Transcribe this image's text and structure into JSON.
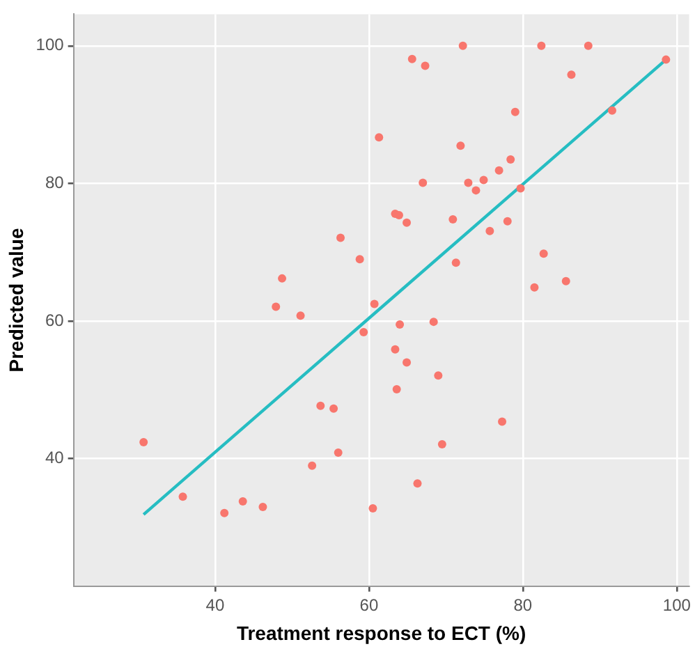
{
  "chart_data": {
    "type": "scatter",
    "xlabel": "Treatment response to ECT (%)",
    "ylabel": "Predicted value",
    "xlim": [
      21.6,
      101.6
    ],
    "ylim": [
      21.5,
      104.6
    ],
    "xticks": [
      40,
      60,
      80,
      100
    ],
    "yticks": [
      40,
      60,
      80,
      100
    ],
    "grid": true,
    "marker": "circle",
    "legend": false,
    "series": [
      {
        "color": "#f8766d",
        "x": [
          47.9,
          51.1,
          60.7,
          59.3,
          53.7,
          55.4,
          56.0,
          52.6,
          30.7,
          35.8,
          43.6,
          41.2,
          46.2,
          60.5,
          61.3,
          56.3,
          58.8,
          48.7,
          72.2,
          82.4,
          88.5,
          65.6,
          67.3,
          86.3,
          98.6,
          91.6,
          79.0,
          71.9,
          78.4,
          76.9,
          74.9,
          72.9,
          67.0,
          73.9,
          79.7,
          63.4,
          63.9,
          64.9,
          70.9,
          78.0,
          75.7,
          71.3,
          82.7,
          81.5,
          85.6,
          64.0,
          68.4,
          63.4,
          64.9,
          69.0,
          63.6,
          77.3,
          69.5,
          66.3
        ],
        "values": [
          62.1,
          60.8,
          62.5,
          58.4,
          47.7,
          47.3,
          40.9,
          39.0,
          42.4,
          34.5,
          33.8,
          32.1,
          33.0,
          32.8,
          86.7,
          72.1,
          69.0,
          66.2,
          100,
          100,
          100,
          98.1,
          97.1,
          95.8,
          98.0,
          90.6,
          90.4,
          85.5,
          83.5,
          81.9,
          80.5,
          80.1,
          80.1,
          79.0,
          79.3,
          75.6,
          75.4,
          74.3,
          74.8,
          74.5,
          73.1,
          68.5,
          69.8,
          64.9,
          65.8,
          59.5,
          59.9,
          55.9,
          54.0,
          52.1,
          50.1,
          45.4,
          42.1,
          36.4
        ]
      },
      {
        "type": "line",
        "color": "#26bdc2",
        "x": [
          30.7,
          98.6
        ],
        "values": [
          31.9,
          98.0
        ],
        "marker": "none",
        "line_style": "solid"
      }
    ]
  }
}
